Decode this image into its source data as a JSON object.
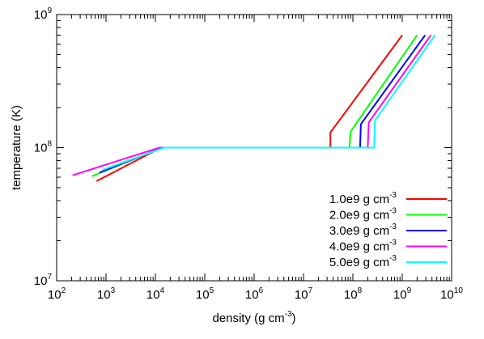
{
  "chart_data": {
    "type": "line",
    "title": "",
    "xlabel": {
      "base": "density (g cm",
      "sup": "-3",
      "tail": ")"
    },
    "ylabel": "temperature (K)",
    "xscale": "log",
    "yscale": "log",
    "xlim": [
      100,
      10000000000
    ],
    "ylim": [
      10000000,
      1000000000
    ],
    "grid": false,
    "legend_position": "bottom-right",
    "x_ticks": [
      {
        "value": 100,
        "base": "10",
        "exp": "2"
      },
      {
        "value": 1000,
        "base": "10",
        "exp": "3"
      },
      {
        "value": 10000,
        "base": "10",
        "exp": "4"
      },
      {
        "value": 100000,
        "base": "10",
        "exp": "5"
      },
      {
        "value": 1000000,
        "base": "10",
        "exp": "6"
      },
      {
        "value": 10000000,
        "base": "10",
        "exp": "7"
      },
      {
        "value": 100000000,
        "base": "10",
        "exp": "8"
      },
      {
        "value": 1000000000,
        "base": "10",
        "exp": "9"
      },
      {
        "value": 10000000000,
        "base": "10",
        "exp": "10"
      }
    ],
    "y_ticks": [
      {
        "value": 10000000,
        "base": "10",
        "exp": "7"
      },
      {
        "value": 100000000,
        "base": "10",
        "exp": "8"
      },
      {
        "value": 1000000000,
        "base": "10",
        "exp": "9"
      }
    ],
    "series": [
      {
        "name": {
          "base": "1.0e9 g cm",
          "sup": "-3"
        },
        "color": "#ff0000",
        "points": [
          [
            640,
            56000000
          ],
          [
            13000,
            100000000
          ],
          [
            35000000,
            100000000
          ],
          [
            35000000,
            130000000
          ],
          [
            1000000000,
            700000000
          ]
        ]
      },
      {
        "name": {
          "base": "2.0e9 g cm",
          "sup": "-3"
        },
        "color": "#00ff00",
        "points": [
          [
            520,
            61000000
          ],
          [
            13500,
            100000000
          ],
          [
            85000000,
            100000000
          ],
          [
            90000000,
            132000000
          ],
          [
            2000000000,
            700000000
          ]
        ]
      },
      {
        "name": {
          "base": "3.0e9 g cm",
          "sup": "-3"
        },
        "color": "#0000ff",
        "points": [
          [
            740,
            65000000
          ],
          [
            14000,
            100000000
          ],
          [
            140000000,
            100000000
          ],
          [
            145000000,
            150000000
          ],
          [
            2900000000,
            700000000
          ]
        ]
      },
      {
        "name": {
          "base": "4.0e9 g cm",
          "sup": "-3"
        },
        "color": "#ff00ff",
        "points": [
          [
            210,
            62000000
          ],
          [
            12000,
            100000000
          ],
          [
            200000000,
            100000000
          ],
          [
            210000000,
            155000000
          ],
          [
            3800000000,
            700000000
          ]
        ]
      },
      {
        "name": {
          "base": "5.0e9 g cm",
          "sup": "-3"
        },
        "color": "#00ffff",
        "points": [
          [
            840,
            68000000
          ],
          [
            15000,
            100000000
          ],
          [
            270000000,
            100000000
          ],
          [
            280000000,
            160000000
          ],
          [
            4600000000,
            700000000
          ]
        ]
      }
    ]
  }
}
